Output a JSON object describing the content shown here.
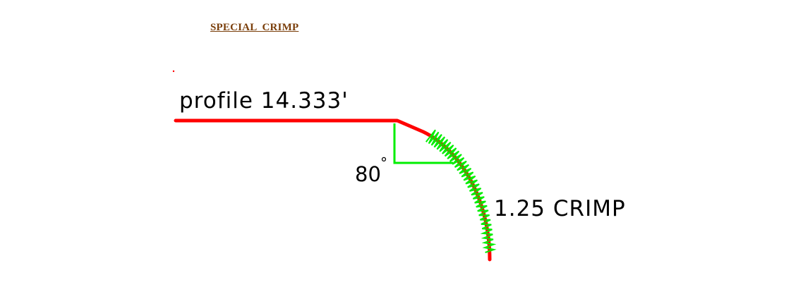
{
  "title": "SPECIAL  CRIMP",
  "profile_label": "profile 14.333'",
  "angle_label": "80",
  "angle_symbol": "°",
  "crimp_label": "1.25 CRIMP",
  "colors": {
    "title": "#7a3e0a",
    "profile_line": "#ff0000",
    "angle_guide": "#00ee00",
    "crimp_zigzag": "#00ee00"
  }
}
